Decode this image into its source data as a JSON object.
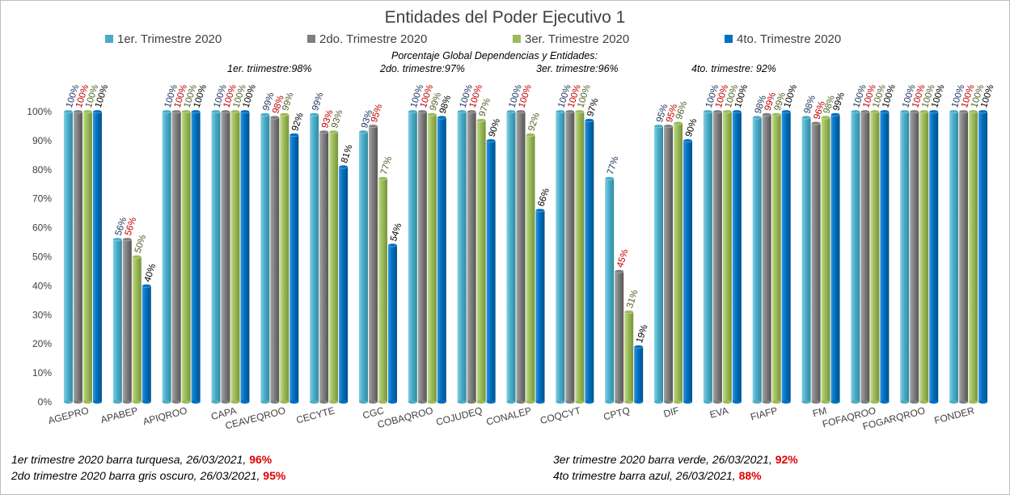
{
  "chart_data": {
    "type": "bar",
    "title": "Entidades del Poder Ejecutivo 1",
    "subtitle": "Porcentaje Global  Dependencias y Entidades:",
    "global_notes": [
      "1er. triimestre:98%",
      "2do. trimestre:97%",
      "3er. trimestre:96%",
      "4to. trimestre: 92%"
    ],
    "ylim": [
      0,
      100
    ],
    "yticks": [
      "0%",
      "10%",
      "20%",
      "30%",
      "40%",
      "50%",
      "60%",
      "70%",
      "80%",
      "90%",
      "100%"
    ],
    "categories": [
      "AGEPRO",
      "APABEP",
      "APIQROO",
      "CAPA",
      "CEAVEQROO",
      "CECYTE",
      "CGC",
      "COBAQROO",
      "COJUDEQ",
      "CONALEP",
      "COQCYT",
      "CPTQ",
      "DIF",
      "EVA",
      "FIAFP",
      "FM",
      "FOFAQROO",
      "FOGARQROO",
      "FONDER"
    ],
    "series": [
      {
        "name": "1er. Trimestre 2020",
        "color": "#4bacc6",
        "label_color": "#1f3864",
        "values": [
          100,
          56,
          100,
          100,
          99,
          99,
          93,
          100,
          100,
          100,
          100,
          77,
          95,
          100,
          98,
          98,
          100,
          100,
          100
        ],
        "labels": [
          "100%",
          "56%",
          "100%",
          "100%",
          "99%",
          "99%",
          "93%",
          "100%",
          "100%",
          "100%",
          "100%",
          "77%",
          "95%",
          "100%",
          "98%",
          "98%",
          "100%",
          "100%",
          "100%"
        ]
      },
      {
        "name": "2do. Trimestre 2020",
        "color": "#7f7f7f",
        "label_color": "#c00000",
        "values": [
          100,
          56,
          100,
          100,
          98,
          93,
          95,
          100,
          100,
          100,
          100,
          45,
          95,
          100,
          99,
          96,
          100,
          100,
          100
        ],
        "labels": [
          "100%",
          "56%",
          "100%",
          "100%",
          "98%",
          "93%",
          "95%",
          "100%",
          "100%",
          "100%",
          "100%",
          "45%",
          "95%",
          "100%",
          "99%",
          "96%",
          "100%",
          "100%",
          "100%"
        ]
      },
      {
        "name": "3er. Trimestre 2020",
        "color": "#9bbb59",
        "label_color": "#4f6228",
        "values": [
          100,
          50,
          100,
          100,
          99,
          93,
          77,
          99,
          97,
          92,
          100,
          31,
          96,
          100,
          99,
          98,
          100,
          100,
          100
        ],
        "labels": [
          "100%",
          "50%",
          "100%",
          "100%",
          "99%",
          "93%",
          "77%",
          "99%",
          "97%",
          "92%",
          "100%",
          "31%",
          "96%",
          "100%",
          "99%",
          "98%",
          "100%",
          "100%",
          "100%"
        ]
      },
      {
        "name": "4to. Trimestre 2020",
        "color": "#0070c0",
        "label_color": "#000000",
        "values": [
          100,
          40,
          100,
          100,
          92,
          81,
          54,
          98,
          90,
          66,
          97,
          19,
          90,
          100,
          100,
          99,
          100,
          100,
          100
        ],
        "labels": [
          "100%",
          "40%",
          "100%",
          "100%",
          "92%",
          "81%",
          "54%",
          "98%",
          "90%",
          "66%",
          "97%",
          "19%",
          "90%",
          "100%",
          "100%",
          "99%",
          "100%",
          "100%",
          "100%"
        ]
      }
    ],
    "legend_position": "top",
    "grid": false
  },
  "footnotes": {
    "q1": {
      "text": "1er trimestre  2020 barra turquesa,  26/03/2021, ",
      "value": "96%"
    },
    "q2": {
      "text": "2do trimestre  2020 barra gris oscuro,  26/03/2021,  ",
      "value": "95%"
    },
    "q3": {
      "text": "3er trimestre 2020 barra verde,  26/03/2021,  ",
      "value": "92%"
    },
    "q4": {
      "text": "4to trimestre barra azul, 26/03/2021, ",
      "value": "88%"
    }
  }
}
